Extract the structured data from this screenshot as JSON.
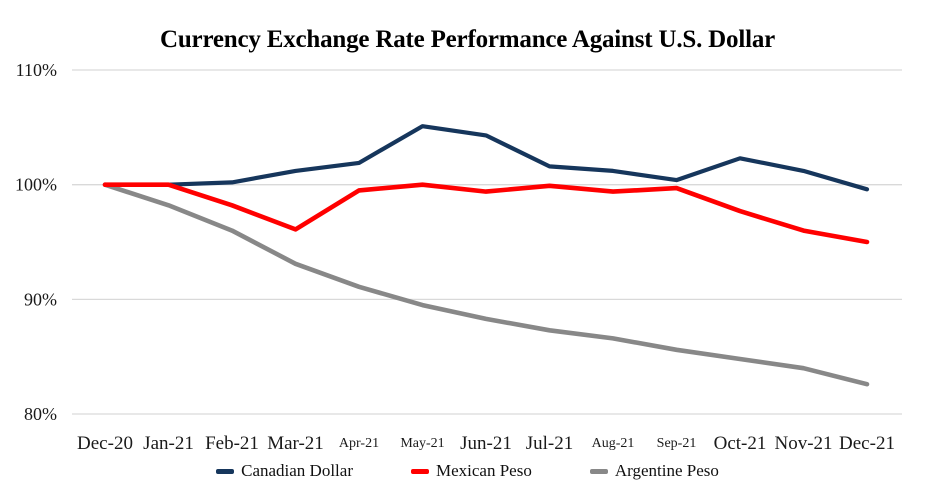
{
  "chart_data": {
    "type": "line",
    "title": "Currency Exchange Rate Performance Against U.S. Dollar",
    "x": [
      "Dec-20",
      "Jan-21",
      "Feb-21",
      "Mar-21",
      "Apr-21",
      "May-21",
      "Jun-21",
      "Jul-21",
      "Aug-21",
      "Sep-21",
      "Oct-21",
      "Nov-21",
      "Dec-21"
    ],
    "x_small_labels": [
      "Apr-21",
      "May-21",
      "Aug-21",
      "Sep-21"
    ],
    "series": [
      {
        "name": "Canadian Dollar",
        "color": "#16365C",
        "values": [
          100,
          100,
          100.2,
          101.2,
          101.9,
          105.1,
          104.3,
          101.6,
          101.2,
          100.4,
          102.3,
          101.2,
          99.6
        ]
      },
      {
        "name": "Mexican Peso",
        "color": "#FF0000",
        "values": [
          100,
          100,
          98.2,
          96.1,
          99.5,
          100.0,
          99.4,
          99.9,
          99.4,
          99.7,
          97.7,
          96.0,
          95.0
        ]
      },
      {
        "name": "Argentine Peso",
        "color": "#888888",
        "values": [
          100,
          98.2,
          96.0,
          93.1,
          91.1,
          89.5,
          88.3,
          87.3,
          86.6,
          85.6,
          84.8,
          84.0,
          82.6
        ]
      }
    ],
    "draw_order": [
      0,
      2,
      1
    ],
    "ylabel": "",
    "xlabel": "",
    "ylim": [
      80,
      110
    ],
    "yticks": [
      110,
      100,
      90,
      80
    ],
    "ytick_suffix": "%",
    "grid": true,
    "legend_position": "bottom"
  },
  "colors": {
    "background": "#FFFFFF",
    "gridline": "#D9D9D9",
    "tick_text": "#1A1A1A",
    "title_text": "#000000"
  }
}
